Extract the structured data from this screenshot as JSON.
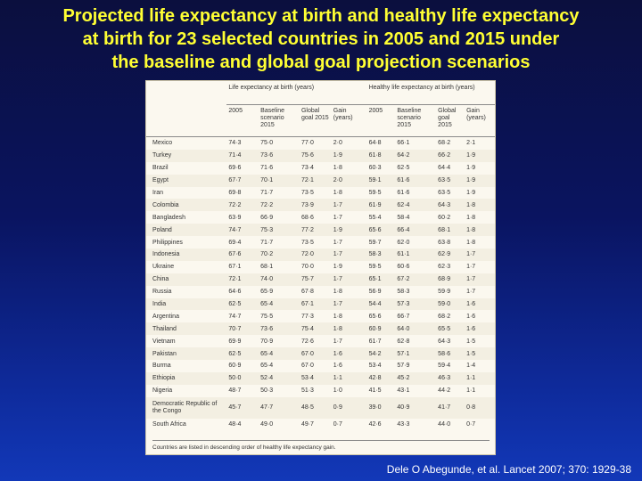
{
  "title_lines": [
    "Projected life expectancy at birth and healthy life expectancy",
    "at birth for 23 selected countries in 2005 and 2015 under",
    "the baseline and global goal projection scenarios"
  ],
  "table": {
    "group_headers": [
      "Life expectancy at birth (years)",
      "Healthy life expectancy at birth (years)"
    ],
    "sub_headers": [
      "2005",
      "Baseline scenario 2015",
      "Global goal 2015",
      "Gain (years)",
      "2005",
      "Baseline scenario 2015",
      "Global goal 2015",
      "Gain (years)"
    ],
    "rows": [
      [
        "Mexico",
        "74·3",
        "75·0",
        "77·0",
        "2·0",
        "64·8",
        "66·1",
        "68·2",
        "2·1"
      ],
      [
        "Turkey",
        "71·4",
        "73·6",
        "75·6",
        "1·9",
        "61·8",
        "64·2",
        "66·2",
        "1·9"
      ],
      [
        "Brazil",
        "69·6",
        "71·6",
        "73·4",
        "1·8",
        "60·3",
        "62·5",
        "64·4",
        "1·9"
      ],
      [
        "Egypt",
        "67·7",
        "70·1",
        "72·1",
        "2·0",
        "59·1",
        "61·6",
        "63·5",
        "1·9"
      ],
      [
        "Iran",
        "69·8",
        "71·7",
        "73·5",
        "1·8",
        "59·5",
        "61·6",
        "63·5",
        "1·9"
      ],
      [
        "Colombia",
        "72·2",
        "72·2",
        "73·9",
        "1·7",
        "61·9",
        "62·4",
        "64·3",
        "1·8"
      ],
      [
        "Bangladesh",
        "63·9",
        "66·9",
        "68·6",
        "1·7",
        "55·4",
        "58·4",
        "60·2",
        "1·8"
      ],
      [
        "Poland",
        "74·7",
        "75·3",
        "77·2",
        "1·9",
        "65·6",
        "66·4",
        "68·1",
        "1·8"
      ],
      [
        "Philippines",
        "69·4",
        "71·7",
        "73·5",
        "1·7",
        "59·7",
        "62·0",
        "63·8",
        "1·8"
      ],
      [
        "Indonesia",
        "67·6",
        "70·2",
        "72·0",
        "1·7",
        "58·3",
        "61·1",
        "62·9",
        "1·7"
      ],
      [
        "Ukraine",
        "67·1",
        "68·1",
        "70·0",
        "1·9",
        "59·5",
        "60·6",
        "62·3",
        "1·7"
      ],
      [
        "China",
        "72·1",
        "74·0",
        "75·7",
        "1·7",
        "65·1",
        "67·2",
        "68·9",
        "1·7"
      ],
      [
        "Russia",
        "64·6",
        "65·9",
        "67·8",
        "1·8",
        "56·9",
        "58·3",
        "59·9",
        "1·7"
      ],
      [
        "India",
        "62·5",
        "65·4",
        "67·1",
        "1·7",
        "54·4",
        "57·3",
        "59·0",
        "1·6"
      ],
      [
        "Argentina",
        "74·7",
        "75·5",
        "77·3",
        "1·8",
        "65·6",
        "66·7",
        "68·2",
        "1·6"
      ],
      [
        "Thailand",
        "70·7",
        "73·6",
        "75·4",
        "1·8",
        "60·9",
        "64·0",
        "65·5",
        "1·6"
      ],
      [
        "Vietnam",
        "69·9",
        "70·9",
        "72·6",
        "1·7",
        "61·7",
        "62·8",
        "64·3",
        "1·5"
      ],
      [
        "Pakistan",
        "62·5",
        "65·4",
        "67·0",
        "1·6",
        "54·2",
        "57·1",
        "58·6",
        "1·5"
      ],
      [
        "Burma",
        "60·9",
        "65·4",
        "67·0",
        "1·6",
        "53·4",
        "57·9",
        "59·4",
        "1·4"
      ],
      [
        "Ethiopia",
        "50·0",
        "52·4",
        "53·4",
        "1·1",
        "42·8",
        "45·2",
        "46·3",
        "1·1"
      ],
      [
        "Nigeria",
        "48·7",
        "50·3",
        "51·3",
        "1·0",
        "41·5",
        "43·1",
        "44·2",
        "1·1"
      ],
      [
        "Democratic Republic of the Congo",
        "45·7",
        "47·7",
        "48·5",
        "0·9",
        "39·0",
        "40·9",
        "41·7",
        "0·8"
      ],
      [
        "South Africa",
        "48·4",
        "49·0",
        "49·7",
        "0·7",
        "42·6",
        "43·3",
        "44·0",
        "0·7"
      ]
    ],
    "footnote": "Countries are listed in descending order of healthy life expectancy gain."
  },
  "citation": "Dele O Abegunde, et al. Lancet 2007; 370: 1929-38"
}
